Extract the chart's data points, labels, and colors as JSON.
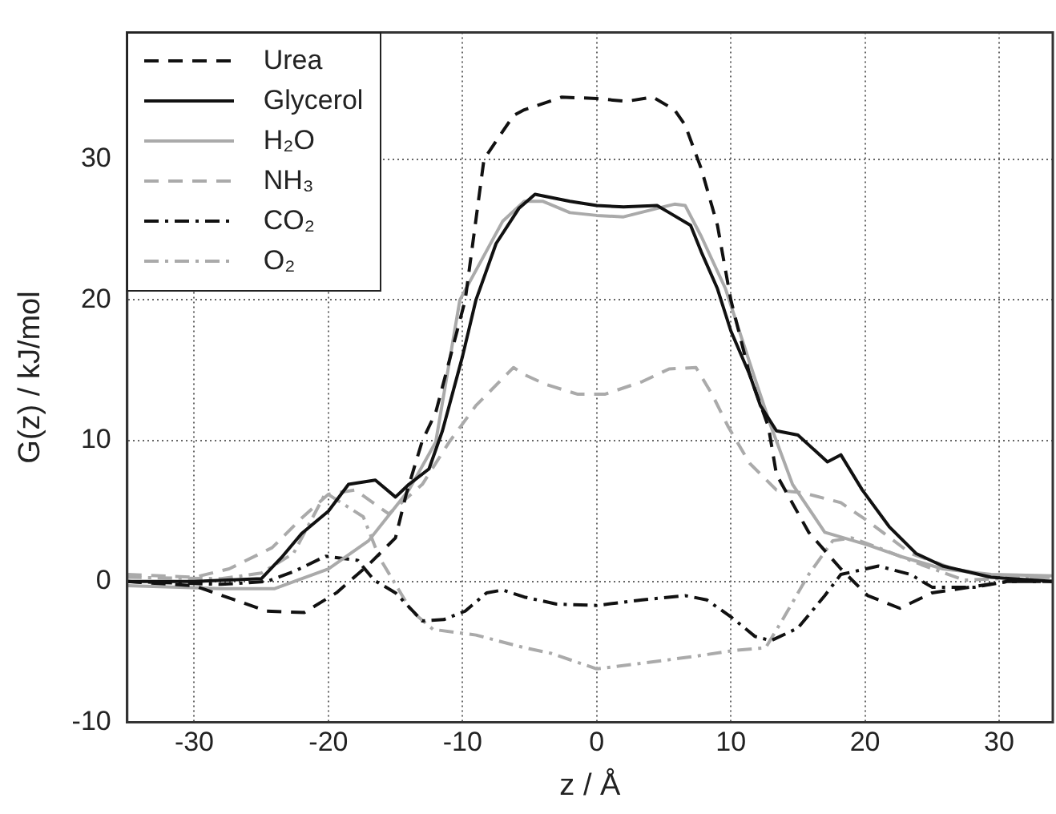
{
  "chart_data": {
    "type": "line",
    "xlabel": "z / Å",
    "ylabel": "G(z) / kJ/mol",
    "xlim": [
      -35,
      34
    ],
    "ylim": [
      -10,
      39
    ],
    "xticks": [
      -30,
      -20,
      -10,
      0,
      10,
      20,
      30
    ],
    "yticks": [
      -10,
      0,
      10,
      20,
      30
    ],
    "grid": true,
    "legend": "top left",
    "marker": "none",
    "series": [
      {
        "name": "Urea",
        "color": "#111111",
        "line_style": "dashed",
        "x": [
          -35,
          -30,
          -27,
          -24.6,
          -21.8,
          -19.4,
          -17,
          -15,
          -14.2,
          -13,
          -12,
          -9.8,
          -8.4,
          -6.2,
          -5.4,
          -2.6,
          0,
          2.2,
          4.2,
          5.8,
          6.6,
          7.8,
          9,
          10,
          11.4,
          12.8,
          13.4,
          15.8,
          18.2,
          20.2,
          22.6,
          25,
          27.8,
          30.6,
          34
        ],
        "values": [
          0,
          -0.3,
          -1.3,
          -2.1,
          -2.2,
          -0.8,
          1.2,
          3.1,
          6.2,
          10,
          12,
          20,
          30,
          33.1,
          33.5,
          34.4,
          34.3,
          34.1,
          34.4,
          33.5,
          32.4,
          29.3,
          25.3,
          20,
          14.7,
          11,
          7.6,
          3.5,
          0.9,
          -1,
          -1.9,
          -0.8,
          -0.4,
          0,
          0
        ]
      },
      {
        "name": "Glycerol",
        "color": "#111111",
        "line_style": "solid",
        "x": [
          -35,
          -30,
          -25,
          -23.5,
          -22,
          -20,
          -18.5,
          -16.5,
          -15,
          -14,
          -12.5,
          -11.5,
          -10,
          -9,
          -7.5,
          -5.8,
          -4.6,
          -2,
          0,
          2,
          4.5,
          5.4,
          7,
          7.8,
          9,
          10,
          11.4,
          12.2,
          13.4,
          15,
          17.2,
          18.2,
          19.8,
          21.8,
          23.8,
          25.8,
          29.4,
          34
        ],
        "values": [
          0,
          0,
          0.2,
          1.7,
          3.4,
          5,
          6.9,
          7.2,
          6,
          6.9,
          8,
          10.7,
          16,
          20,
          24,
          26.5,
          27.5,
          27,
          26.7,
          26.6,
          26.7,
          26.2,
          25.3,
          23.4,
          20.8,
          17.8,
          14.7,
          12.5,
          10.7,
          10.4,
          8.5,
          9,
          6.5,
          3.9,
          2,
          1.1,
          0.3,
          0
        ]
      },
      {
        "name": "H₂O",
        "color": "#aaaaaa",
        "line_style": "solid",
        "x": [
          -35,
          -28,
          -24,
          -20,
          -17,
          -14,
          -12,
          -10.2,
          -7,
          -5.4,
          -4,
          -2,
          0,
          2,
          4.5,
          5.8,
          6.6,
          7.8,
          9.6,
          11.8,
          13,
          14.6,
          17,
          20.2,
          22.6,
          25.8,
          29.4,
          34
        ],
        "values": [
          -0.3,
          -0.5,
          -0.5,
          0.9,
          2.9,
          6.5,
          9.9,
          20,
          25.6,
          27,
          27,
          26.2,
          26,
          25.9,
          26.5,
          26.8,
          26.7,
          24.5,
          20.8,
          14.4,
          11,
          6.9,
          3.5,
          2.6,
          1.8,
          0.9,
          0.5,
          0.4
        ]
      },
      {
        "name": "NH₃",
        "color": "#aaaaaa",
        "line_style": "dashed",
        "x": [
          -35,
          -30,
          -27.4,
          -24.2,
          -22,
          -20,
          -18,
          -15.5,
          -13,
          -11,
          -9,
          -6.2,
          -5.4,
          -3.8,
          -1.4,
          0.6,
          3.4,
          5.4,
          7.4,
          8.6,
          9.8,
          11.4,
          13.4,
          15.4,
          18.2,
          20.2,
          23.4,
          26.6,
          30,
          34
        ],
        "values": [
          0.5,
          0.3,
          0.9,
          2.4,
          4.5,
          6.2,
          6.5,
          4.8,
          6.9,
          9.9,
          12.5,
          15.2,
          14.7,
          14,
          13.3,
          13.3,
          14.2,
          15.1,
          15.2,
          13.3,
          11,
          8.4,
          6.5,
          6.3,
          5.6,
          4.3,
          2,
          0.9,
          0.3,
          0.3
        ]
      },
      {
        "name": "CO₂",
        "color": "#111111",
        "line_style": "dashdot",
        "x": [
          -35,
          -28,
          -24.6,
          -22.6,
          -20.2,
          -17.8,
          -16.6,
          -15,
          -13,
          -11.4,
          -9.8,
          -8.2,
          -7,
          -5.4,
          -3,
          0,
          3.4,
          6.6,
          8.2,
          10,
          11.8,
          13,
          15,
          17,
          18.2,
          21,
          23.4,
          25,
          28.2,
          30.6,
          34
        ],
        "values": [
          0,
          -0.2,
          0,
          0.7,
          1.8,
          1.5,
          0.1,
          -0.8,
          -2.8,
          -2.7,
          -2.1,
          -0.8,
          -0.6,
          -1.1,
          -1.6,
          -1.7,
          -1.3,
          -1,
          -1.3,
          -2.5,
          -3.9,
          -4.2,
          -3.3,
          -1,
          0.5,
          1.1,
          0.5,
          -0.4,
          -0.4,
          0,
          0
        ]
      },
      {
        "name": "O₂",
        "color": "#aaaaaa",
        "line_style": "dashdot",
        "x": [
          -35,
          -28,
          -25,
          -22.6,
          -20.2,
          -17.4,
          -16.2,
          -13.8,
          -12.2,
          -9,
          -5.4,
          -3.4,
          0,
          3.4,
          7.4,
          10.2,
          12.6,
          13.8,
          15.8,
          17.6,
          19,
          21,
          24.2,
          27.4,
          30,
          34
        ],
        "values": [
          0.3,
          0.2,
          0.6,
          2,
          6.3,
          4.6,
          1.7,
          -2.1,
          -3.4,
          -3.8,
          -4.7,
          -5.1,
          -6.2,
          -5.8,
          -5.3,
          -4.9,
          -4.7,
          -2.8,
          0.5,
          2.9,
          3.1,
          2.4,
          1.2,
          0.1,
          0.2,
          0.3
        ]
      }
    ]
  }
}
